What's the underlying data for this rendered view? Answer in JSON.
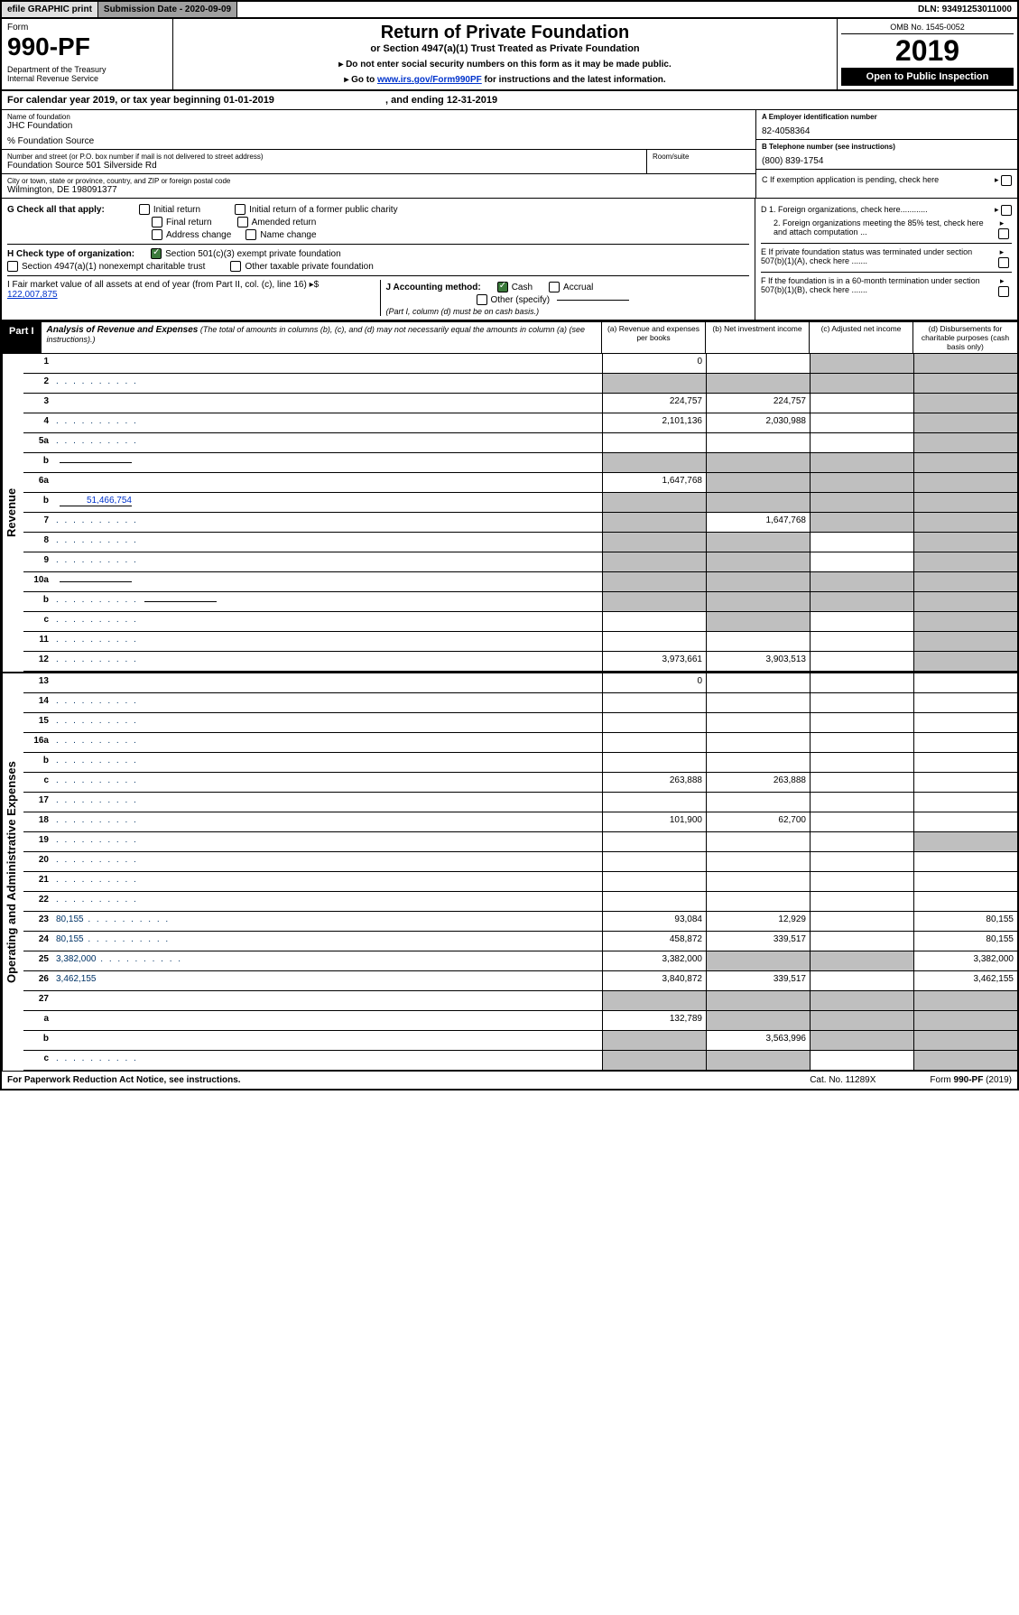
{
  "topbar": {
    "efile": "efile GRAPHIC print",
    "subdate_label": "Submission Date - 2020-09-09",
    "dln": "DLN: 93491253011000"
  },
  "header": {
    "form_label": "Form",
    "form_number": "990-PF",
    "dept": "Department of the Treasury\nInternal Revenue Service",
    "main_title": "Return of Private Foundation",
    "sub_title": "or Section 4947(a)(1) Trust Treated as Private Foundation",
    "instr1": "▸ Do not enter social security numbers on this form as it may be made public.",
    "instr2_pre": "▸ Go to ",
    "instr2_link": "www.irs.gov/Form990PF",
    "instr2_post": " for instructions and the latest information.",
    "omb": "OMB No. 1545-0052",
    "year": "2019",
    "open": "Open to Public Inspection"
  },
  "calyear": {
    "prefix": "For calendar year 2019, or tax year beginning ",
    "begin": "01-01-2019",
    "mid": " , and ending ",
    "end": "12-31-2019"
  },
  "ident": {
    "name_label": "Name of foundation",
    "name": "JHC Foundation",
    "care_of": "% Foundation Source",
    "street_label": "Number and street (or P.O. box number if mail is not delivered to street address)",
    "street": "Foundation Source 501 Silverside Rd",
    "room_label": "Room/suite",
    "room": "",
    "city_label": "City or town, state or province, country, and ZIP or foreign postal code",
    "city": "Wilmington, DE 198091377",
    "a_label": "A Employer identification number",
    "a_val": "82-4058364",
    "b_label": "B Telephone number (see instructions)",
    "b_val": "(800) 839-1754",
    "c_label": "C If exemption application is pending, check here"
  },
  "checks": {
    "g_label": "G Check all that apply:",
    "g_opts": [
      "Initial return",
      "Initial return of a former public charity",
      "Final return",
      "Amended return",
      "Address change",
      "Name change"
    ],
    "h_label": "H Check type of organization:",
    "h1": "Section 501(c)(3) exempt private foundation",
    "h2": "Section 4947(a)(1) nonexempt charitable trust",
    "h3": "Other taxable private foundation",
    "i_label": "I Fair market value of all assets at end of year (from Part II, col. (c), line 16) ▸$",
    "i_val": "122,007,875",
    "j_label": "J Accounting method:",
    "j_cash": "Cash",
    "j_accrual": "Accrual",
    "j_other": "Other (specify)",
    "j_note": "(Part I, column (d) must be on cash basis.)",
    "d1": "D 1. Foreign organizations, check here............",
    "d2": "2. Foreign organizations meeting the 85% test, check here and attach computation ...",
    "e": "E  If private foundation status was terminated under section 507(b)(1)(A), check here .......",
    "f": "F  If the foundation is in a 60-month termination under section 507(b)(1)(B), check here ......."
  },
  "part1": {
    "tab": "Part I",
    "title": "Analysis of Revenue and Expenses",
    "title_note": " (The total of amounts in columns (b), (c), and (d) may not necessarily equal the amounts in column (a) (see instructions).)",
    "cols": [
      "(a)   Revenue and expenses per books",
      "(b)  Net investment income",
      "(c)  Adjusted net income",
      "(d)  Disbursements for charitable purposes (cash basis only)"
    ]
  },
  "revenue_label": "Revenue",
  "expenses_label": "Operating and Administrative Expenses",
  "rows": [
    {
      "n": "1",
      "d": "",
      "a": "0",
      "b": "",
      "c": "",
      "shade_c": true,
      "shade_d": true
    },
    {
      "n": "2",
      "d": "",
      "dots": true,
      "a": "",
      "b": "",
      "c": "",
      "shade_a": true,
      "shade_b": true,
      "shade_c": true,
      "shade_d": true
    },
    {
      "n": "3",
      "d": "",
      "a": "224,757",
      "b": "224,757",
      "c": "",
      "shade_d": true
    },
    {
      "n": "4",
      "d": "",
      "dots": true,
      "a": "2,101,136",
      "b": "2,030,988",
      "c": "",
      "shade_d": true
    },
    {
      "n": "5a",
      "d": "",
      "dots": true,
      "a": "",
      "b": "",
      "c": "",
      "shade_d": true
    },
    {
      "n": "b",
      "d": "",
      "inline": "",
      "a": "",
      "b": "",
      "c": "",
      "shade_a": true,
      "shade_b": true,
      "shade_c": true,
      "shade_d": true
    },
    {
      "n": "6a",
      "d": "",
      "a": "1,647,768",
      "b": "",
      "c": "",
      "shade_b": true,
      "shade_c": true,
      "shade_d": true
    },
    {
      "n": "b",
      "d": "",
      "inline": "51,466,754",
      "a": "",
      "b": "",
      "c": "",
      "shade_a": true,
      "shade_b": true,
      "shade_c": true,
      "shade_d": true
    },
    {
      "n": "7",
      "d": "",
      "dots": true,
      "a": "",
      "b": "1,647,768",
      "c": "",
      "shade_a": true,
      "shade_c": true,
      "shade_d": true
    },
    {
      "n": "8",
      "d": "",
      "dots": true,
      "a": "",
      "b": "",
      "c": "",
      "shade_a": true,
      "shade_b": true,
      "shade_d": true
    },
    {
      "n": "9",
      "d": "",
      "dots": true,
      "a": "",
      "b": "",
      "c": "",
      "shade_a": true,
      "shade_b": true,
      "shade_d": true
    },
    {
      "n": "10a",
      "d": "",
      "inline": "",
      "a": "",
      "b": "",
      "c": "",
      "shade_a": true,
      "shade_b": true,
      "shade_c": true,
      "shade_d": true
    },
    {
      "n": "b",
      "d": "",
      "dots": true,
      "inline": "",
      "a": "",
      "b": "",
      "c": "",
      "shade_a": true,
      "shade_b": true,
      "shade_c": true,
      "shade_d": true
    },
    {
      "n": "c",
      "d": "",
      "dots": true,
      "a": "",
      "b": "",
      "c": "",
      "shade_b": true,
      "shade_d": true
    },
    {
      "n": "11",
      "d": "",
      "dots": true,
      "a": "",
      "b": "",
      "c": "",
      "shade_d": true
    },
    {
      "n": "12",
      "d": "",
      "dots": true,
      "a": "3,973,661",
      "b": "3,903,513",
      "c": "",
      "shade_d": true,
      "bold": true
    }
  ],
  "exp_rows": [
    {
      "n": "13",
      "d": "",
      "a": "0",
      "b": "",
      "c": ""
    },
    {
      "n": "14",
      "d": "",
      "dots": true,
      "a": "",
      "b": "",
      "c": ""
    },
    {
      "n": "15",
      "d": "",
      "dots": true,
      "a": "",
      "b": "",
      "c": ""
    },
    {
      "n": "16a",
      "d": "",
      "dots": true,
      "a": "",
      "b": "",
      "c": ""
    },
    {
      "n": "b",
      "d": "",
      "dots": true,
      "a": "",
      "b": "",
      "c": ""
    },
    {
      "n": "c",
      "d": "",
      "dots": true,
      "a": "263,888",
      "b": "263,888",
      "c": ""
    },
    {
      "n": "17",
      "d": "",
      "dots": true,
      "a": "",
      "b": "",
      "c": ""
    },
    {
      "n": "18",
      "d": "",
      "dots": true,
      "a": "101,900",
      "b": "62,700",
      "c": ""
    },
    {
      "n": "19",
      "d": "",
      "dots": true,
      "a": "",
      "b": "",
      "c": "",
      "shade_d": true
    },
    {
      "n": "20",
      "d": "",
      "dots": true,
      "a": "",
      "b": "",
      "c": ""
    },
    {
      "n": "21",
      "d": "",
      "dots": true,
      "a": "",
      "b": "",
      "c": ""
    },
    {
      "n": "22",
      "d": "",
      "dots": true,
      "a": "",
      "b": "",
      "c": ""
    },
    {
      "n": "23",
      "d": "80,155",
      "dots": true,
      "a": "93,084",
      "b": "12,929",
      "c": ""
    },
    {
      "n": "24",
      "d": "80,155",
      "dots": true,
      "a": "458,872",
      "b": "339,517",
      "c": ""
    },
    {
      "n": "25",
      "d": "3,382,000",
      "dots": true,
      "a": "3,382,000",
      "b": "",
      "c": "",
      "shade_b": true,
      "shade_c": true
    },
    {
      "n": "26",
      "d": "3,462,155",
      "a": "3,840,872",
      "b": "339,517",
      "c": ""
    },
    {
      "n": "27",
      "d": "",
      "a": "",
      "b": "",
      "c": "",
      "shade_a": true,
      "shade_b": true,
      "shade_c": true,
      "shade_d": true
    },
    {
      "n": "a",
      "d": "",
      "a": "132,789",
      "b": "",
      "c": "",
      "shade_b": true,
      "shade_c": true,
      "shade_d": true
    },
    {
      "n": "b",
      "d": "",
      "a": "",
      "b": "3,563,996",
      "c": "",
      "shade_a": true,
      "shade_c": true,
      "shade_d": true
    },
    {
      "n": "c",
      "d": "",
      "dots": true,
      "a": "",
      "b": "",
      "c": "",
      "shade_a": true,
      "shade_b": true,
      "shade_d": true
    }
  ],
  "footer": {
    "left": "For Paperwork Reduction Act Notice, see instructions.",
    "mid": "Cat. No. 11289X",
    "right": "Form 990-PF (2019)"
  },
  "colors": {
    "link": "#0033cc",
    "shaded": "#bfbfbf",
    "black": "#000000",
    "checked": "#3b7a3b"
  }
}
